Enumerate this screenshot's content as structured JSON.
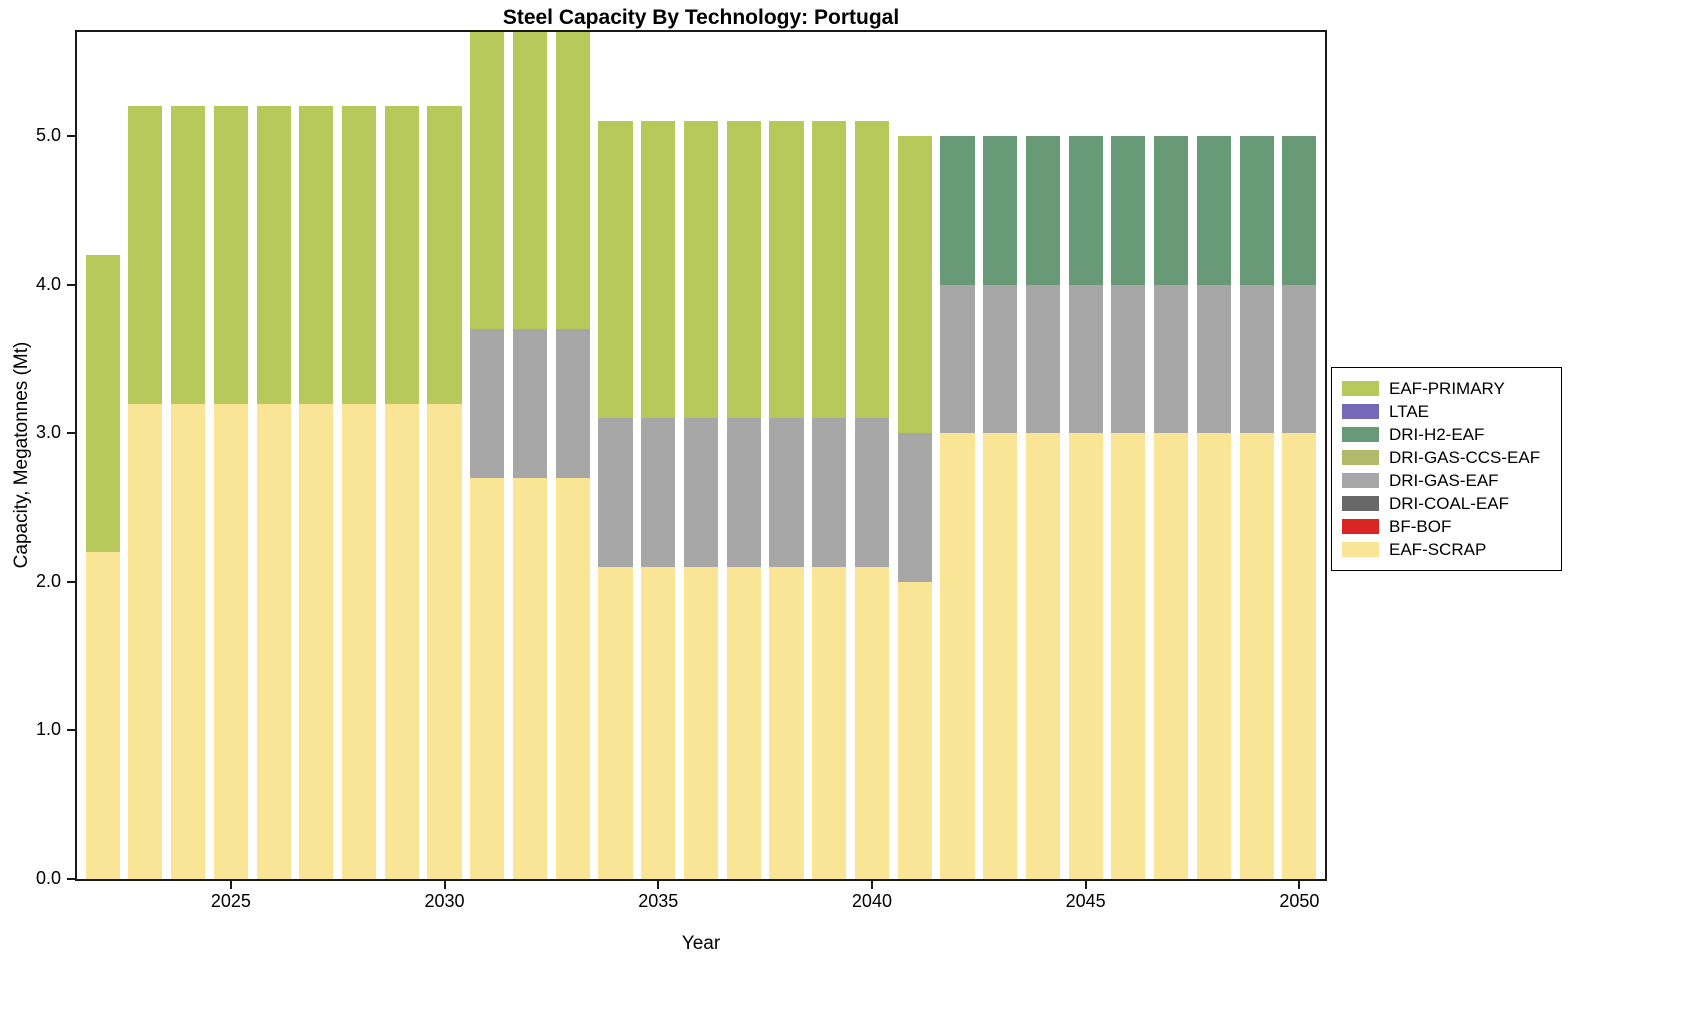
{
  "title": "Steel Capacity By Technology: Portugal",
  "axes": {
    "xlabel": "Year",
    "ylabel": "Capacity, Megatonnes (Mt)"
  },
  "legend": {
    "items": [
      {
        "label": "EAF-PRIMARY",
        "color": "#b6c95a"
      },
      {
        "label": "LTAE",
        "color": "#7568b8"
      },
      {
        "label": "DRI-H2-EAF",
        "color": "#689a78"
      },
      {
        "label": "DRI-GAS-CCS-EAF",
        "color": "#b3b96b"
      },
      {
        "label": "DRI-GAS-EAF",
        "color": "#a7a7a7"
      },
      {
        "label": "DRI-COAL-EAF",
        "color": "#686868"
      },
      {
        "label": "BF-BOF",
        "color": "#db2525"
      },
      {
        "label": "EAF-SCRAP",
        "color": "#fae496"
      }
    ]
  },
  "chart_data": {
    "type": "bar",
    "stacked": true,
    "title": "Steel Capacity By Technology: Portugal",
    "xlabel": "Year",
    "ylabel": "Capacity, Megatonnes (Mt)",
    "grid": false,
    "legend_position": "right-outside",
    "x": [
      2022,
      2023,
      2024,
      2025,
      2026,
      2027,
      2028,
      2029,
      2030,
      2031,
      2032,
      2033,
      2034,
      2035,
      2036,
      2037,
      2038,
      2039,
      2040,
      2041,
      2042,
      2043,
      2044,
      2045,
      2046,
      2047,
      2048,
      2049,
      2050
    ],
    "xticks": [
      2025,
      2030,
      2035,
      2040,
      2045,
      2050
    ],
    "yticks": [
      0,
      1,
      2,
      3,
      4,
      5
    ],
    "xlim": [
      2021.4,
      2050.6
    ],
    "ylim": [
      0,
      5.7
    ],
    "bar_rel_width": 0.8,
    "series": [
      {
        "name": "EAF-SCRAP",
        "color": "#fae496",
        "values": [
          2.2,
          3.2,
          3.2,
          3.2,
          3.2,
          3.2,
          3.2,
          3.2,
          3.2,
          2.7,
          2.7,
          2.7,
          2.1,
          2.1,
          2.1,
          2.1,
          2.1,
          2.1,
          2.1,
          2.0,
          3.0,
          3.0,
          3.0,
          3.0,
          3.0,
          3.0,
          3.0,
          3.0,
          3.0
        ]
      },
      {
        "name": "BF-BOF",
        "color": "#db2525",
        "values": [
          0,
          0,
          0,
          0,
          0,
          0,
          0,
          0,
          0,
          0,
          0,
          0,
          0,
          0,
          0,
          0,
          0,
          0,
          0,
          0,
          0,
          0,
          0,
          0,
          0,
          0,
          0,
          0,
          0
        ]
      },
      {
        "name": "DRI-COAL-EAF",
        "color": "#686868",
        "values": [
          0,
          0,
          0,
          0,
          0,
          0,
          0,
          0,
          0,
          0,
          0,
          0,
          0,
          0,
          0,
          0,
          0,
          0,
          0,
          0,
          0,
          0,
          0,
          0,
          0,
          0,
          0,
          0,
          0
        ]
      },
      {
        "name": "DRI-GAS-EAF",
        "color": "#a7a7a7",
        "values": [
          0,
          0,
          0,
          0,
          0,
          0,
          0,
          0,
          0,
          1.0,
          1.0,
          1.0,
          1.0,
          1.0,
          1.0,
          1.0,
          1.0,
          1.0,
          1.0,
          1.0,
          1.0,
          1.0,
          1.0,
          1.0,
          1.0,
          1.0,
          1.0,
          1.0,
          1.0
        ]
      },
      {
        "name": "DRI-GAS-CCS-EAF",
        "color": "#b3b96b",
        "values": [
          0,
          0,
          0,
          0,
          0,
          0,
          0,
          0,
          0,
          0,
          0,
          0,
          0,
          0,
          0,
          0,
          0,
          0,
          0,
          0,
          0,
          0,
          0,
          0,
          0,
          0,
          0,
          0,
          0
        ]
      },
      {
        "name": "DRI-H2-EAF",
        "color": "#689a78",
        "values": [
          0,
          0,
          0,
          0,
          0,
          0,
          0,
          0,
          0,
          0,
          0,
          0,
          0,
          0,
          0,
          0,
          0,
          0,
          0,
          0,
          1.0,
          1.0,
          1.0,
          1.0,
          1.0,
          1.0,
          1.0,
          1.0,
          1.0
        ]
      },
      {
        "name": "LTAE",
        "color": "#7568b8",
        "values": [
          0,
          0,
          0,
          0,
          0,
          0,
          0,
          0,
          0,
          0,
          0,
          0,
          0,
          0,
          0,
          0,
          0,
          0,
          0,
          0,
          0,
          0,
          0,
          0,
          0,
          0,
          0,
          0,
          0
        ]
      },
      {
        "name": "EAF-PRIMARY",
        "color": "#b6c95a",
        "values": [
          2.0,
          2.0,
          2.0,
          2.0,
          2.0,
          2.0,
          2.0,
          2.0,
          2.0,
          2.0,
          2.0,
          2.0,
          2.0,
          2.0,
          2.0,
          2.0,
          2.0,
          2.0,
          2.0,
          2.0,
          0,
          0,
          0,
          0,
          0,
          0,
          0,
          0,
          0
        ]
      }
    ]
  }
}
